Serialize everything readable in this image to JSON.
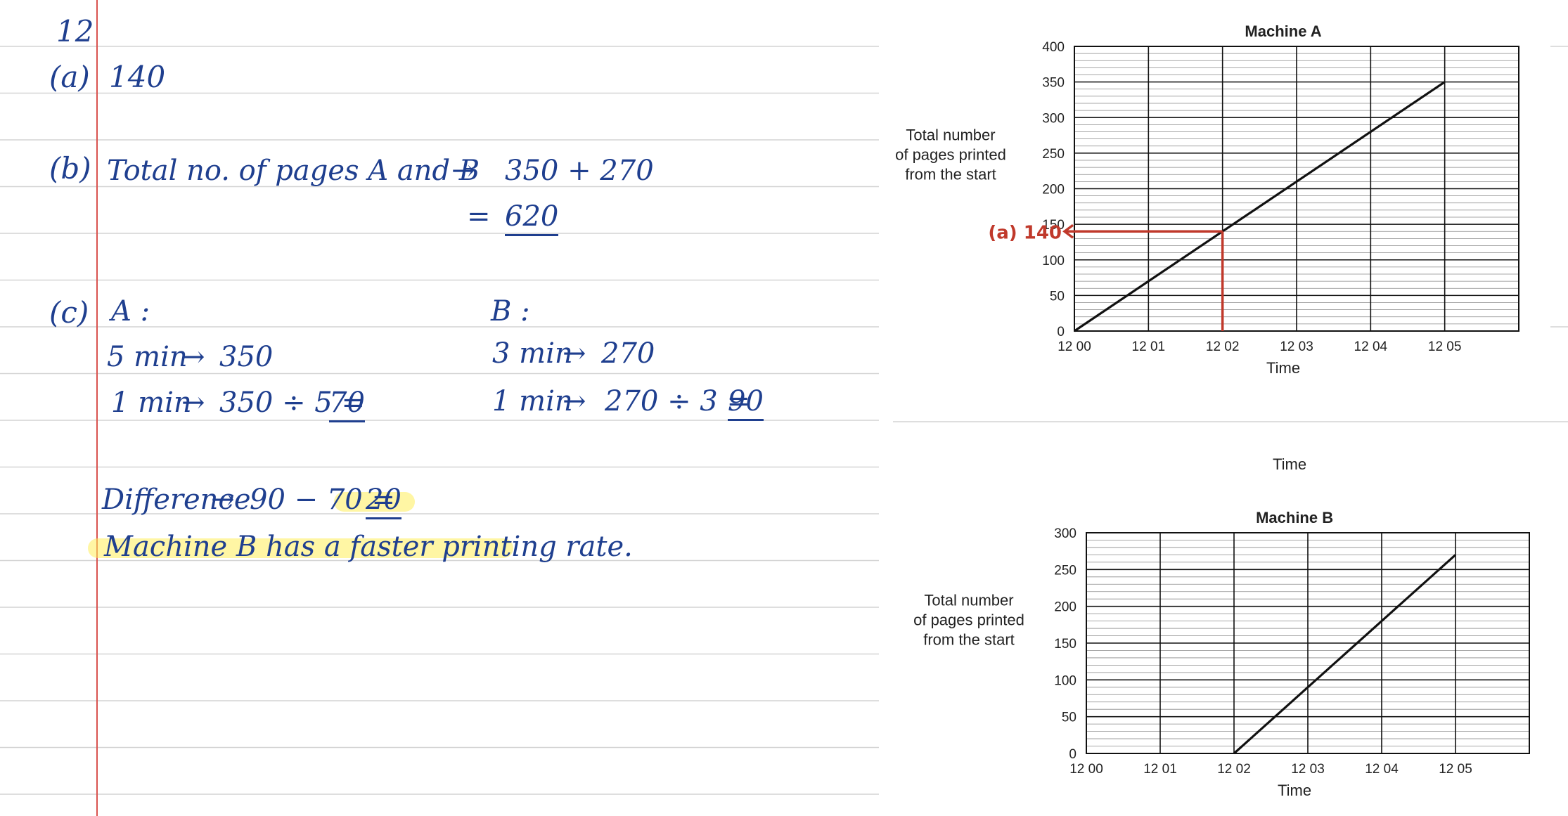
{
  "notes": {
    "question_no": "12",
    "a_label": "(a)",
    "a_answer": "140",
    "b_label": "(b)",
    "b_line1": "Total no. of pages A and B",
    "b_sum": "350 + 270",
    "b_equals": "=",
    "b_result": "620",
    "c_label": "(c)",
    "c_a_head": "A :",
    "c_a_line1": "5 min",
    "c_a_val1": "350",
    "c_a_line2": "1 min",
    "c_a_expr": "350 ÷ 5 =",
    "c_a_result": "70",
    "c_b_head": "B :",
    "c_b_line1": "3 min",
    "c_b_val1": "270",
    "c_b_line2": "1 min",
    "c_b_expr": "270 ÷ 3 =",
    "c_b_result": "90",
    "diff_label": "Difference",
    "diff_expr": "90 − 70 =",
    "diff_result": "20",
    "conclusion": "Machine B has a faster printing rate.",
    "arrow_symbol": "→"
  },
  "between_label": "Time",
  "colors": {
    "ink": "#1f3f8f",
    "annotation": "#c0392b",
    "highlight": "#ffee5a",
    "margin_line": "#d9534f",
    "rule_line": "#d4d4d4"
  },
  "chart_data": [
    {
      "type": "line",
      "title": "Machine A",
      "ylabel": "Total number of pages printed from the start",
      "ylabel_lines": [
        "Total number",
        "of pages printed",
        "from the start"
      ],
      "xlabel": "Time",
      "x_ticks": [
        "12 00",
        "12 01",
        "12 02",
        "12 03",
        "12 04",
        "12 05"
      ],
      "ylim": [
        0,
        400
      ],
      "y_ticks": [
        0,
        50,
        100,
        150,
        200,
        250,
        300,
        350,
        400
      ],
      "grid": true,
      "series": [
        {
          "points": [
            [
              "12 00",
              0
            ],
            [
              "12 05",
              350
            ]
          ]
        }
      ],
      "annotation": {
        "label": "(a) 140",
        "x": "12 02",
        "y": 140
      }
    },
    {
      "type": "line",
      "title": "Machine B",
      "ylabel": "Total number of pages printed from the start",
      "ylabel_lines": [
        "Total number",
        "of pages printed",
        "from the start"
      ],
      "xlabel": "Time",
      "x_ticks": [
        "12 00",
        "12 01",
        "12 02",
        "12 03",
        "12 04",
        "12 05"
      ],
      "ylim": [
        0,
        300
      ],
      "y_ticks": [
        0,
        50,
        100,
        150,
        200,
        250,
        300
      ],
      "grid": true,
      "series": [
        {
          "points": [
            [
              "12 02",
              0
            ],
            [
              "12 05",
              270
            ]
          ]
        }
      ]
    }
  ]
}
